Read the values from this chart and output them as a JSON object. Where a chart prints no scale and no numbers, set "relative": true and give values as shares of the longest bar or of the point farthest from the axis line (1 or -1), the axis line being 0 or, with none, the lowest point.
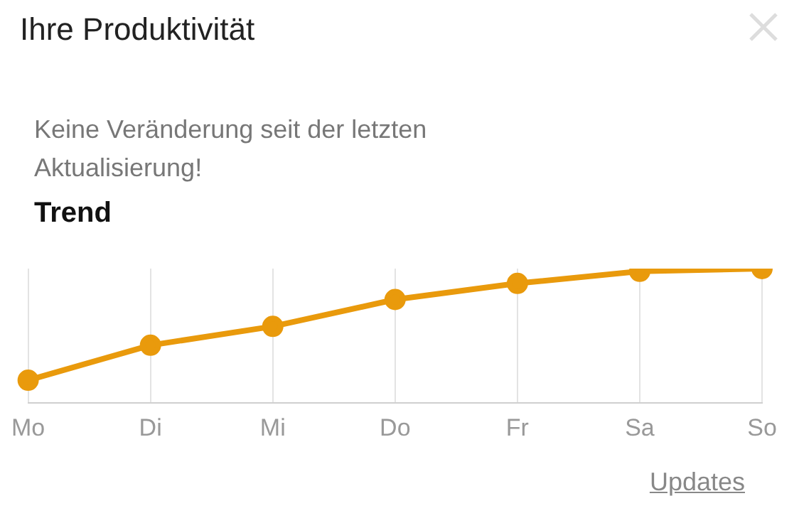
{
  "chart_data": {
    "type": "line",
    "title": "Ihre Produktivität",
    "subtitle": "Keine Veränderung seit der letzten Aktualisierung!",
    "annotations": [
      "Trend",
      "Updates"
    ],
    "categories": [
      "Mo",
      "Di",
      "Mi",
      "Do",
      "Fr",
      "Sa",
      "So"
    ],
    "series": [
      {
        "color": "#e99a0c",
        "values": [
          0.17,
          0.43,
          0.57,
          0.77,
          0.89,
          0.98,
          1
        ]
      }
    ],
    "relative": true,
    "grid": "x",
    "legend": false,
    "marker": "circle",
    "line_style": "solid"
  }
}
